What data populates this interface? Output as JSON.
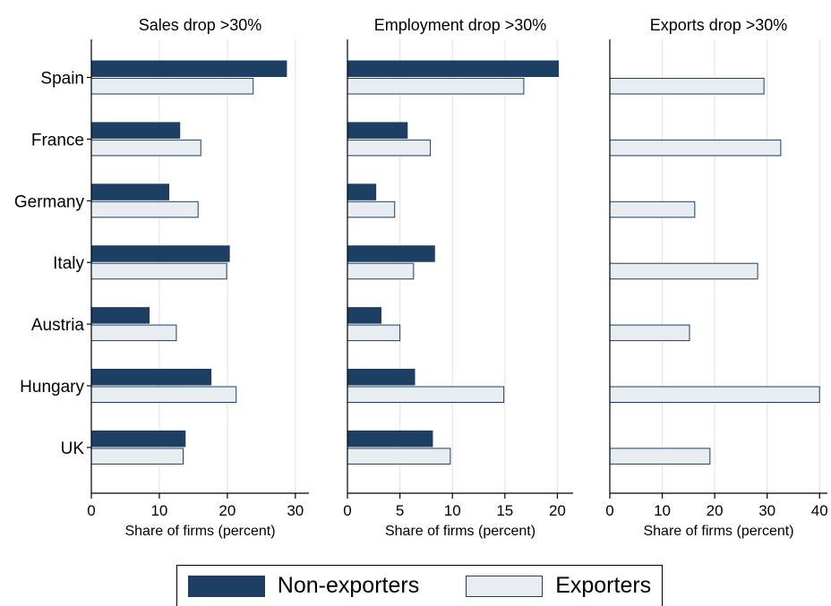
{
  "chart_data": {
    "type": "bar",
    "orientation": "horizontal",
    "categories": [
      "Spain",
      "France",
      "Germany",
      "Italy",
      "Austria",
      "Hungary",
      "UK"
    ],
    "series_names": [
      "Non-exporters",
      "Exporters"
    ],
    "colors": {
      "non_exporters": "#1d3f63",
      "exporters": "#e8edf2",
      "edge": "#1d3f63",
      "grid": "#e6e6e6"
    },
    "legend_position": "bottom",
    "grid": true,
    "panels": [
      {
        "title": "Sales drop >30%",
        "xlabel": "Share of firms (percent)",
        "xlim": [
          0,
          32
        ],
        "xticks": [
          0,
          10,
          20,
          30
        ],
        "series": [
          {
            "name": "Non-exporters",
            "values": [
              28.7,
              13.0,
              11.4,
              20.3,
              8.5,
              17.6,
              13.8
            ]
          },
          {
            "name": "Exporters",
            "values": [
              23.8,
              16.1,
              15.7,
              19.9,
              12.5,
              21.3,
              13.5
            ]
          }
        ]
      },
      {
        "title": "Employment drop >30%",
        "xlabel": "Share of firms (percent)",
        "xlim": [
          0,
          21.5
        ],
        "xticks": [
          0,
          5,
          10,
          15,
          20
        ],
        "series": [
          {
            "name": "Non-exporters",
            "values": [
              20.1,
              5.7,
              2.7,
              8.3,
              3.2,
              6.4,
              8.1
            ]
          },
          {
            "name": "Exporters",
            "values": [
              16.8,
              7.9,
              4.5,
              6.3,
              5.0,
              14.9,
              9.8
            ]
          }
        ]
      },
      {
        "title": "Exports drop >30%",
        "xlabel": "Share of firms (percent)",
        "xlim": [
          0,
          41.5
        ],
        "xticks": [
          0,
          10,
          20,
          30,
          40
        ],
        "series": [
          {
            "name": "Exporters",
            "values": [
              29.4,
              32.6,
              16.2,
              28.2,
              15.2,
              40.0,
              19.1
            ]
          }
        ]
      }
    ]
  }
}
